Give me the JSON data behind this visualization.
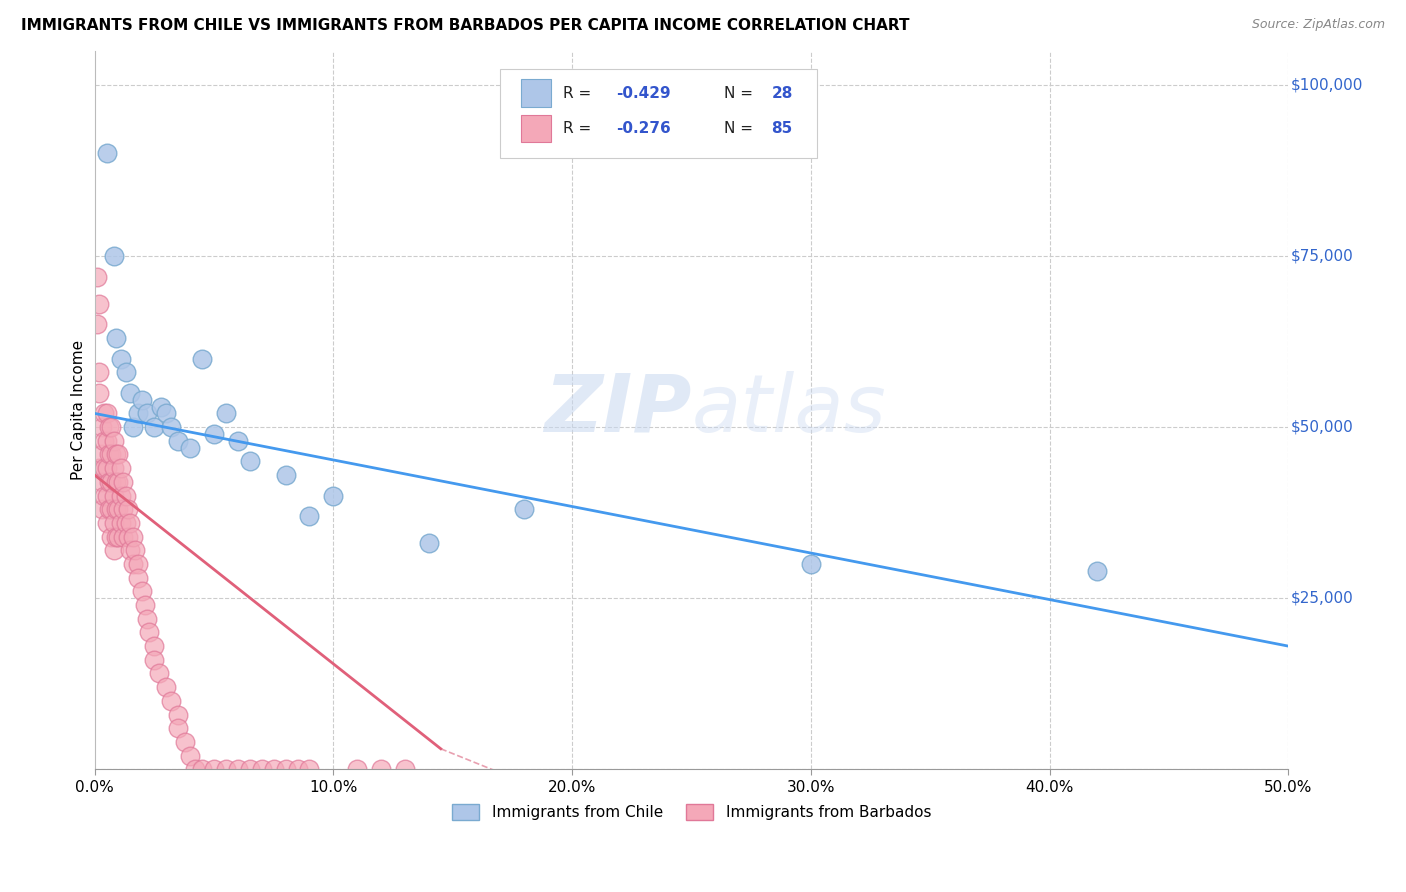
{
  "title": "IMMIGRANTS FROM CHILE VS IMMIGRANTS FROM BARBADOS PER CAPITA INCOME CORRELATION CHART",
  "source": "Source: ZipAtlas.com",
  "ylabel": "Per Capita Income",
  "xlim": [
    0,
    0.5
  ],
  "ylim": [
    0,
    105000
  ],
  "yticks": [
    0,
    25000,
    50000,
    75000,
    100000
  ],
  "ytick_labels_right": [
    "",
    "$25,000",
    "$50,000",
    "$75,000",
    "$100,000"
  ],
  "xticks": [
    0.0,
    0.1,
    0.2,
    0.3,
    0.4,
    0.5
  ],
  "xtick_labels": [
    "0.0%",
    "10.0%",
    "20.0%",
    "30.0%",
    "40.0%",
    "50.0%"
  ],
  "watermark_zip": "ZIP",
  "watermark_atlas": "atlas",
  "chile_color": "#aec6e8",
  "chile_color_edge": "#7aaad0",
  "barbados_color": "#f4a8b8",
  "barbados_color_edge": "#e07898",
  "background_color": "#ffffff",
  "grid_color": "#cccccc",
  "chile_R": "-0.429",
  "chile_N": "28",
  "barbados_R": "-0.276",
  "barbados_N": "85",
  "chile_line": [
    0.0,
    0.5,
    52000,
    18000
  ],
  "barbados_line_solid": [
    0.0,
    0.145,
    43000,
    3000
  ],
  "barbados_line_dash": [
    0.145,
    0.28,
    3000,
    -16000
  ],
  "chile_scatter_x": [
    0.005,
    0.008,
    0.009,
    0.011,
    0.013,
    0.015,
    0.016,
    0.018,
    0.02,
    0.022,
    0.025,
    0.028,
    0.03,
    0.032,
    0.035,
    0.04,
    0.045,
    0.05,
    0.055,
    0.06,
    0.065,
    0.08,
    0.09,
    0.1,
    0.14,
    0.18,
    0.3,
    0.42
  ],
  "chile_scatter_y": [
    90000,
    75000,
    63000,
    60000,
    58000,
    55000,
    50000,
    52000,
    54000,
    52000,
    50000,
    53000,
    52000,
    50000,
    48000,
    47000,
    60000,
    49000,
    52000,
    48000,
    45000,
    43000,
    37000,
    40000,
    33000,
    38000,
    30000,
    29000
  ],
  "barbados_scatter_x": [
    0.002,
    0.002,
    0.002,
    0.003,
    0.003,
    0.003,
    0.003,
    0.004,
    0.004,
    0.004,
    0.004,
    0.005,
    0.005,
    0.005,
    0.005,
    0.005,
    0.006,
    0.006,
    0.006,
    0.006,
    0.007,
    0.007,
    0.007,
    0.007,
    0.007,
    0.008,
    0.008,
    0.008,
    0.008,
    0.008,
    0.009,
    0.009,
    0.009,
    0.009,
    0.01,
    0.01,
    0.01,
    0.01,
    0.011,
    0.011,
    0.011,
    0.012,
    0.012,
    0.012,
    0.013,
    0.013,
    0.014,
    0.014,
    0.015,
    0.015,
    0.016,
    0.016,
    0.017,
    0.018,
    0.018,
    0.02,
    0.021,
    0.022,
    0.023,
    0.025,
    0.025,
    0.027,
    0.03,
    0.032,
    0.035,
    0.035,
    0.038,
    0.04,
    0.042,
    0.045,
    0.05,
    0.055,
    0.06,
    0.065,
    0.07,
    0.075,
    0.08,
    0.085,
    0.09,
    0.11,
    0.12,
    0.13,
    0.001,
    0.001,
    0.002
  ],
  "barbados_scatter_y": [
    68000,
    55000,
    44000,
    50000,
    46000,
    42000,
    38000,
    52000,
    48000,
    44000,
    40000,
    52000,
    48000,
    44000,
    40000,
    36000,
    50000,
    46000,
    42000,
    38000,
    50000,
    46000,
    42000,
    38000,
    34000,
    48000,
    44000,
    40000,
    36000,
    32000,
    46000,
    42000,
    38000,
    34000,
    46000,
    42000,
    38000,
    34000,
    44000,
    40000,
    36000,
    42000,
    38000,
    34000,
    40000,
    36000,
    38000,
    34000,
    36000,
    32000,
    34000,
    30000,
    32000,
    30000,
    28000,
    26000,
    24000,
    22000,
    20000,
    18000,
    16000,
    14000,
    12000,
    10000,
    8000,
    6000,
    4000,
    2000,
    0,
    0,
    0,
    0,
    0,
    0,
    0,
    0,
    0,
    0,
    0,
    0,
    0,
    0,
    72000,
    65000,
    58000
  ]
}
